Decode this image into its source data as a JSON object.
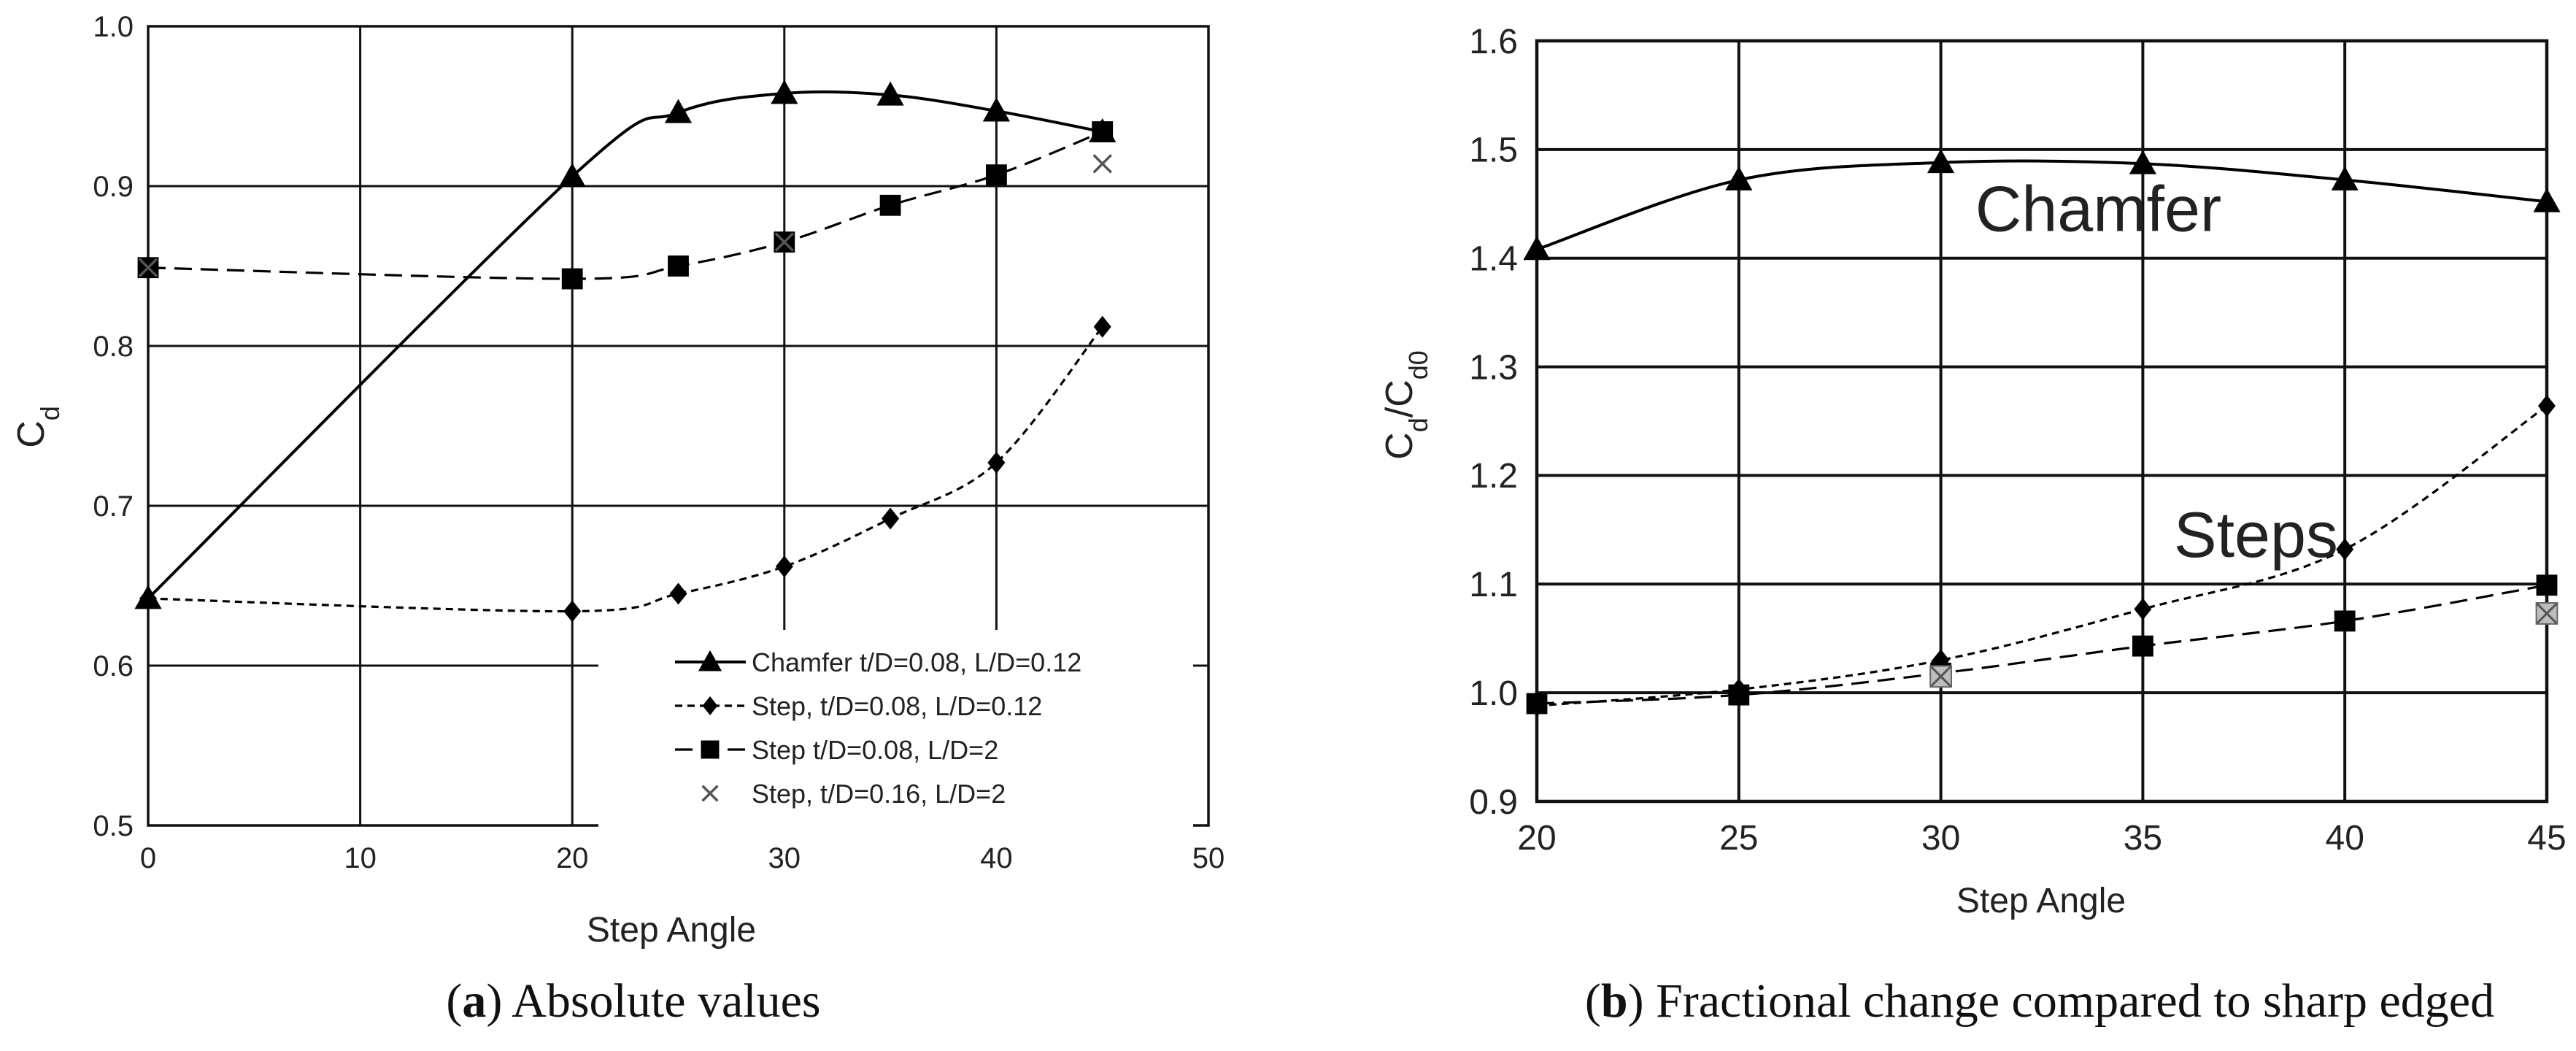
{
  "chart_data": [
    {
      "type": "line",
      "caption_label": "a",
      "caption_text": " Absolute values",
      "xlabel": "Step Angle",
      "ylabel_main": "C",
      "ylabel_sub": "d",
      "xlim": [
        0,
        50
      ],
      "ylim": [
        0.5,
        1.0
      ],
      "xticks": [
        "0",
        "10",
        "20",
        "30",
        "40",
        "50"
      ],
      "yticks": [
        "0.5",
        "0.6",
        "0.7",
        "0.8",
        "0.9",
        "1.0"
      ],
      "grid": true,
      "legend_position": "bottom-right",
      "series": [
        {
          "name": "Chamfer t/D=0.08, L/D=0.12",
          "marker": "triangle",
          "dash": "solid",
          "x": [
            0,
            20,
            25,
            30,
            35,
            40,
            45
          ],
          "y": [
            0.642,
            0.906,
            0.946,
            0.958,
            0.957,
            0.947,
            0.934
          ]
        },
        {
          "name": "Step, t/D=0.08, L/D=0.12",
          "marker": "diamond",
          "dash": "short",
          "x": [
            0,
            20,
            25,
            30,
            35,
            40,
            45
          ],
          "y": [
            0.642,
            0.634,
            0.645,
            0.662,
            0.692,
            0.727,
            0.812
          ]
        },
        {
          "name": "Step t/D=0.08, L/D=2",
          "marker": "square",
          "dash": "long",
          "x": [
            0,
            20,
            25,
            30,
            35,
            40,
            45
          ],
          "y": [
            0.849,
            0.842,
            0.85,
            0.865,
            0.888,
            0.907,
            0.934
          ]
        },
        {
          "name": "Step, t/D=0.16, L/D=2",
          "marker": "x",
          "dash": "none",
          "x": [
            0,
            30,
            45
          ],
          "y": [
            0.849,
            0.865,
            0.914
          ]
        }
      ]
    },
    {
      "type": "line",
      "caption_label": "b",
      "caption_text": " Fractional change compared to sharp edged",
      "xlabel": "Step Angle",
      "ylabel_main": "C",
      "ylabel_sub": "d",
      "ylabel_main2": "/C",
      "ylabel_sub2": "d0",
      "xlim": [
        20,
        45
      ],
      "ylim": [
        0.9,
        1.6
      ],
      "xticks": [
        "20",
        "25",
        "30",
        "35",
        "40",
        "45"
      ],
      "yticks": [
        "0.9",
        "1.0",
        "1.1",
        "1.2",
        "1.3",
        "1.4",
        "1.5",
        "1.6"
      ],
      "grid": true,
      "annotations": [
        {
          "text": "Chamfer",
          "x": 33.9,
          "y": 1.425
        },
        {
          "text": "Steps",
          "x": 37.8,
          "y": 1.125
        }
      ],
      "series": [
        {
          "name": "Chamfer",
          "marker": "triangle",
          "dash": "solid",
          "x": [
            20,
            25,
            30,
            35,
            40,
            45
          ],
          "y": [
            1.408,
            1.472,
            1.488,
            1.487,
            1.472,
            1.452
          ]
        },
        {
          "name": "Step, t/D=0.08, L/D=0.12",
          "marker": "diamond",
          "dash": "short",
          "x": [
            20,
            25,
            30,
            35,
            40,
            45
          ],
          "y": [
            0.988,
            1.003,
            1.03,
            1.077,
            1.132,
            1.264
          ]
        },
        {
          "name": "Step t/D=0.08, L/D=2",
          "marker": "square",
          "dash": "long",
          "x": [
            20,
            25,
            30,
            35,
            40,
            45
          ],
          "y": [
            0.99,
            0.998,
            1.018,
            1.043,
            1.066,
            1.099
          ]
        },
        {
          "name": "Step, t/D=0.16, L/D=2",
          "marker": "xsquare",
          "dash": "none",
          "x": [
            30,
            45
          ],
          "y": [
            1.015,
            1.073
          ]
        }
      ]
    }
  ]
}
